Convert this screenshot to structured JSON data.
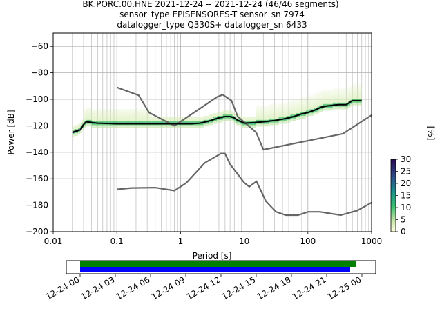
{
  "title": {
    "line1": "BK.PORC.00.HNE   2021-12-24 -- 2021-12-24  (46/46 segments)",
    "line2": "sensor_type EPISENSORES-T sensor_sn 7974",
    "line3": "datalogger_type Q330S+ datalogger_sn 6433"
  },
  "chart_data": [
    {
      "type": "heatmap",
      "xlabel": "Period [s]",
      "ylabel": "Power [dB]",
      "x_scale": "log",
      "xlim": [
        0.01,
        1000
      ],
      "ylim": [
        -200,
        -50
      ],
      "x_ticks": [
        {
          "v": 0.01,
          "label": "0.01"
        },
        {
          "v": 0.1,
          "label": "0.1"
        },
        {
          "v": 1,
          "label": "1"
        },
        {
          "v": 10,
          "label": "10"
        },
        {
          "v": 100,
          "label": "100"
        },
        {
          "v": 1000,
          "label": "1000"
        }
      ],
      "y_ticks": [
        {
          "v": -60,
          "label": "−60"
        },
        {
          "v": -80,
          "label": "−80"
        },
        {
          "v": -100,
          "label": "−100"
        },
        {
          "v": -120,
          "label": "−120"
        },
        {
          "v": -140,
          "label": "−140"
        },
        {
          "v": -160,
          "label": "−160"
        },
        {
          "v": -180,
          "label": "−180"
        },
        {
          "v": -200,
          "label": "−200"
        }
      ],
      "grid": true,
      "mode_curve": [
        [
          0.02,
          -125
        ],
        [
          0.023,
          -124
        ],
        [
          0.027,
          -123
        ],
        [
          0.03,
          -119
        ],
        [
          0.033,
          -117
        ],
        [
          0.05,
          -118
        ],
        [
          0.1,
          -118.5
        ],
        [
          0.3,
          -118.5
        ],
        [
          1,
          -118.5
        ],
        [
          1.5,
          -118.5
        ],
        [
          2,
          -118
        ],
        [
          2.5,
          -117
        ],
        [
          3,
          -116
        ],
        [
          4,
          -114
        ],
        [
          5,
          -113
        ],
        [
          6,
          -113
        ],
        [
          7,
          -114
        ],
        [
          8,
          -116
        ],
        [
          9,
          -117
        ],
        [
          10,
          -118
        ],
        [
          15,
          -117.5
        ],
        [
          20,
          -117
        ],
        [
          30,
          -116
        ],
        [
          40,
          -115
        ],
        [
          50,
          -114
        ],
        [
          60,
          -113
        ],
        [
          70,
          -112
        ],
        [
          80,
          -111
        ],
        [
          100,
          -110
        ],
        [
          130,
          -108
        ],
        [
          160,
          -106
        ],
        [
          200,
          -105
        ],
        [
          300,
          -104
        ],
        [
          400,
          -104
        ],
        [
          500,
          -101
        ],
        [
          700,
          -101
        ]
      ],
      "nhnm": [
        [
          0.1,
          -91
        ],
        [
          0.22,
          -97
        ],
        [
          0.32,
          -110
        ],
        [
          0.8,
          -120
        ],
        [
          3.8,
          -98
        ],
        [
          4.6,
          -96.5
        ],
        [
          6.3,
          -101
        ],
        [
          7.9,
          -113
        ],
        [
          15.4,
          -125
        ],
        [
          20,
          -138
        ],
        [
          354.8,
          -126
        ],
        [
          1000,
          -112
        ]
      ],
      "nlnm": [
        [
          0.1,
          -168
        ],
        [
          0.17,
          -167
        ],
        [
          0.4,
          -166.7
        ],
        [
          0.8,
          -169
        ],
        [
          1.24,
          -163
        ],
        [
          2.4,
          -148
        ],
        [
          4.3,
          -141
        ],
        [
          5,
          -141
        ],
        [
          6,
          -149
        ],
        [
          10,
          -163
        ],
        [
          12,
          -166
        ],
        [
          15.6,
          -162
        ],
        [
          21.9,
          -177
        ],
        [
          31.6,
          -185
        ],
        [
          45,
          -187.5
        ],
        [
          70,
          -187.5
        ],
        [
          101,
          -185
        ],
        [
          154,
          -185
        ],
        [
          328,
          -187.5
        ],
        [
          600,
          -184
        ],
        [
          1000,
          -178
        ]
      ],
      "colorbar": {
        "label": "[%]",
        "range": [
          0,
          30
        ],
        "ticks": [
          "0",
          "5",
          "10",
          "15",
          "20",
          "25",
          "30"
        ]
      }
    },
    {
      "type": "bar",
      "title": "",
      "x_ticks": [
        "12-24 00",
        "12-24 03",
        "12-24 06",
        "12-24 09",
        "12-24 12",
        "12-24 15",
        "12-24 18",
        "12-24 21",
        "12-25 00"
      ],
      "series": [
        {
          "color": "#008000",
          "start_hour": 0,
          "end_hour": 23.5
        },
        {
          "color": "#0000ff",
          "start_hour": 0,
          "end_hour": 23.0
        }
      ]
    }
  ]
}
